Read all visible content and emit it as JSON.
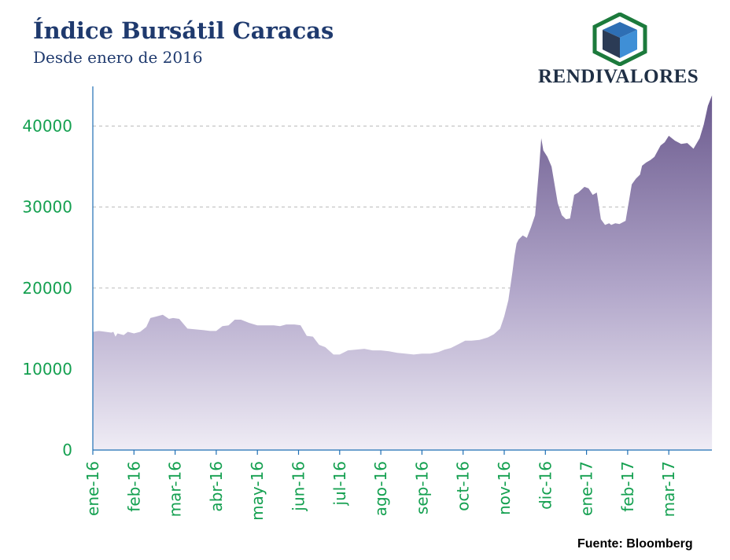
{
  "header": {
    "title": "Índice Bursátil Caracas",
    "subtitle": "Desde enero de 2016"
  },
  "logo": {
    "name": "RENDIVALORES",
    "icon": "cube-logo-icon",
    "colors": {
      "frame": "#1c7a3c",
      "top": "#2e6fb4",
      "left": "#2b3b55",
      "right": "#3f8fd6"
    }
  },
  "source": "Fuente: Bloomberg",
  "colors": {
    "area_top": "#6b5a8e",
    "area_bottom": "#ece8f3",
    "axis": "#1f6fb4",
    "grid": "#bbbbbb",
    "tick_text": "#14a050"
  },
  "chart_data": {
    "type": "area",
    "title": "Índice Bursátil Caracas",
    "subtitle": "Desde enero de 2016",
    "xlabel": "",
    "ylabel": "",
    "ylim": [
      0,
      45000
    ],
    "yticks": [
      0,
      10000,
      20000,
      30000,
      40000
    ],
    "yticklabels": [
      "0",
      "10000",
      "20000",
      "30000",
      "40000"
    ],
    "xticklabels": [
      "ene-16",
      "feb-16",
      "mar-16",
      "abr-16",
      "may-16",
      "jun-16",
      "jul-16",
      "ago-16",
      "sep-16",
      "oct-16",
      "nov-16",
      "dic-16",
      "ene-17",
      "feb-17",
      "mar-17"
    ],
    "grid": "horizontal dashed",
    "series": [
      {
        "values_monthly_index": "x in months since ene-16 tick",
        "x": [
          0,
          0.15,
          0.45,
          0.5,
          0.55,
          0.6,
          0.75,
          0.85,
          1.0,
          1.15,
          1.3,
          1.4,
          1.55,
          1.7,
          1.85,
          1.95,
          2.1,
          2.3,
          2.5,
          2.7,
          2.85,
          3.0,
          3.15,
          3.3,
          3.45,
          3.6,
          3.8,
          4.0,
          4.2,
          4.4,
          4.55,
          4.7,
          4.9,
          5.05,
          5.2,
          5.35,
          5.5,
          5.65,
          5.85,
          6.0,
          6.2,
          6.4,
          6.6,
          6.8,
          7.0,
          7.2,
          7.4,
          7.6,
          7.8,
          8.0,
          8.2,
          8.4,
          8.55,
          8.7,
          8.9,
          9.05,
          9.2,
          9.4,
          9.6,
          9.75,
          9.9,
          10.0,
          10.1,
          10.2,
          10.25,
          10.3,
          10.35,
          10.45,
          10.55,
          10.65,
          10.75,
          10.85,
          10.9,
          10.95,
          11.05,
          11.15,
          11.3,
          11.4,
          11.5,
          11.6,
          11.7,
          11.8,
          11.95,
          12.05,
          12.15,
          12.25,
          12.35,
          12.45,
          12.55,
          12.6,
          12.7,
          12.8,
          12.95,
          13.1,
          13.2,
          13.3,
          13.35,
          13.45,
          13.55,
          13.65,
          13.8,
          13.9,
          14.0,
          14.15,
          14.3,
          14.45,
          14.6,
          14.75,
          14.85,
          14.95,
          15.05
        ],
        "values": [
          14600,
          14700,
          14500,
          14600,
          14000,
          14400,
          14200,
          14600,
          14400,
          14600,
          15200,
          16300,
          16500,
          16700,
          16200,
          16300,
          16200,
          15000,
          14900,
          14800,
          14700,
          14700,
          15300,
          15400,
          16100,
          16100,
          15700,
          15400,
          15400,
          15400,
          15300,
          15500,
          15500,
          15400,
          14100,
          14000,
          13000,
          12700,
          11800,
          11800,
          12300,
          12400,
          12500,
          12300,
          12300,
          12200,
          12000,
          11900,
          11800,
          11900,
          11900,
          12100,
          12400,
          12600,
          13100,
          13500,
          13500,
          13600,
          13900,
          14300,
          15000,
          16500,
          18500,
          22000,
          24000,
          25500,
          26000,
          26500,
          26200,
          27500,
          29000,
          35000,
          38500,
          37000,
          36200,
          35000,
          30500,
          29000,
          28500,
          28600,
          31500,
          31800,
          32500,
          32300,
          31500,
          31800,
          28500,
          27800,
          28000,
          27800,
          28000,
          27900,
          28300,
          32800,
          33500,
          34000,
          35100,
          35500,
          35800,
          36200,
          37600,
          38000,
          38800,
          38200,
          37800,
          37900,
          37200,
          38500,
          40200,
          42500,
          43800
        ]
      }
    ]
  }
}
